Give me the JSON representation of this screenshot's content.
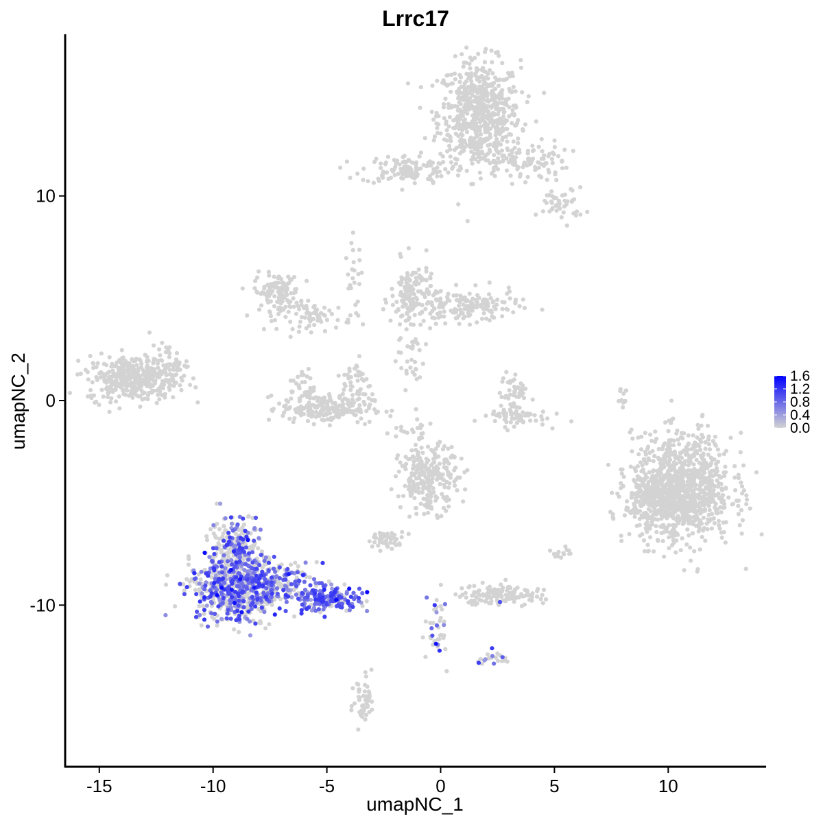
{
  "chart_data": {
    "type": "scatter",
    "title": "Lrrc17",
    "xlabel": "umapNC_1",
    "ylabel": "umapNC_2",
    "xlim": [
      -16.5,
      14.3
    ],
    "ylim": [
      -17.9,
      17.9
    ],
    "x_ticks": [
      -15,
      -10,
      -5,
      0,
      5,
      10
    ],
    "x_tick_labels": [
      "-15",
      "-10",
      "-5",
      "0",
      "5",
      "10"
    ],
    "y_ticks": [
      -10,
      0,
      10
    ],
    "y_tick_labels": [
      "-10",
      "0",
      "10"
    ],
    "grid": false,
    "legend": {
      "placement": "right",
      "range": [
        0,
        1.6
      ],
      "tick_values": [
        0,
        0.4,
        0.8,
        1.2,
        1.6
      ],
      "tick_labels": [
        "0.0",
        "0.4",
        "0.8",
        "1.2",
        "1.6"
      ],
      "low_color": "#d3d3d3",
      "high_color": "#0000ff"
    },
    "colors": {
      "background_points": "#d3d3d3",
      "expressed_low": "#c6b8ef",
      "expressed_high": "#0000ff"
    },
    "clusters": [
      {
        "cx": 1.7,
        "cy": 14.0,
        "sx": 0.9,
        "sy": 1.3,
        "n": 650,
        "expr": 0
      },
      {
        "cx": -1.5,
        "cy": 11.3,
        "sx": 1.0,
        "sy": 0.35,
        "n": 120,
        "expr": 0
      },
      {
        "cx": 3.6,
        "cy": 11.7,
        "sx": 1.0,
        "sy": 0.5,
        "n": 110,
        "expr": 0
      },
      {
        "cx": 5.3,
        "cy": 9.6,
        "sx": 0.5,
        "sy": 0.4,
        "n": 45,
        "expr": 0
      },
      {
        "cx": -7.2,
        "cy": 5.3,
        "sx": 0.5,
        "sy": 0.45,
        "n": 110,
        "expr": 0
      },
      {
        "cx": -5.5,
        "cy": 4.1,
        "sx": 0.8,
        "sy": 0.35,
        "n": 70,
        "expr": 0
      },
      {
        "cx": -3.8,
        "cy": 5.8,
        "sx": 0.2,
        "sy": 1.0,
        "n": 25,
        "expr": 0
      },
      {
        "cx": -1.2,
        "cy": 5.0,
        "sx": 0.5,
        "sy": 0.9,
        "n": 150,
        "expr": 0
      },
      {
        "cx": 1.2,
        "cy": 4.6,
        "sx": 1.1,
        "sy": 0.4,
        "n": 150,
        "expr": 0
      },
      {
        "cx": -5.0,
        "cy": -0.4,
        "sx": 1.0,
        "sy": 0.35,
        "n": 200,
        "expr": 0
      },
      {
        "cx": -6.1,
        "cy": 0.6,
        "sx": 0.3,
        "sy": 0.5,
        "n": 40,
        "expr": 0
      },
      {
        "cx": -3.7,
        "cy": 0.9,
        "sx": 0.3,
        "sy": 0.6,
        "n": 40,
        "expr": 0
      },
      {
        "cx": -13.5,
        "cy": 1.1,
        "sx": 1.0,
        "sy": 0.55,
        "n": 380,
        "expr": 0
      },
      {
        "cx": -12.0,
        "cy": 1.9,
        "sx": 0.4,
        "sy": 0.4,
        "n": 40,
        "expr": 0
      },
      {
        "cx": 3.2,
        "cy": 0.3,
        "sx": 0.3,
        "sy": 0.6,
        "n": 50,
        "expr": 0
      },
      {
        "cx": 3.1,
        "cy": -0.8,
        "sx": 0.8,
        "sy": 0.22,
        "n": 60,
        "expr": 0
      },
      {
        "cx": -1.3,
        "cy": 2.0,
        "sx": 0.3,
        "sy": 0.7,
        "n": 25,
        "expr": 0
      },
      {
        "cx": -1.3,
        "cy": -1.5,
        "sx": 0.6,
        "sy": 0.3,
        "n": 20,
        "expr": 0
      },
      {
        "cx": 7.9,
        "cy": 0.3,
        "sx": 0.15,
        "sy": 0.35,
        "n": 12,
        "expr": 0
      },
      {
        "cx": 10.6,
        "cy": -4.3,
        "sx": 1.1,
        "sy": 1.3,
        "n": 1000,
        "expr": 0
      },
      {
        "cx": 9.5,
        "cy": -5.0,
        "sx": 0.7,
        "sy": 0.6,
        "n": 180,
        "expr": 0
      },
      {
        "cx": -0.5,
        "cy": -3.8,
        "sx": 0.65,
        "sy": 0.8,
        "n": 250,
        "expr": 0
      },
      {
        "cx": -2.4,
        "cy": -6.8,
        "sx": 0.4,
        "sy": 0.2,
        "n": 45,
        "expr": 0
      },
      {
        "cx": 2.6,
        "cy": -9.5,
        "sx": 0.9,
        "sy": 0.25,
        "n": 130,
        "expr": 0.02
      },
      {
        "cx": -0.2,
        "cy": -10.9,
        "sx": 0.25,
        "sy": 0.8,
        "n": 40,
        "expr": 0.25
      },
      {
        "cx": 2.3,
        "cy": -12.6,
        "sx": 0.3,
        "sy": 0.2,
        "n": 22,
        "expr": 0.2
      },
      {
        "cx": -3.4,
        "cy": -14.7,
        "sx": 0.25,
        "sy": 0.7,
        "n": 45,
        "expr": 0
      },
      {
        "cx": 5.3,
        "cy": -7.5,
        "sx": 0.3,
        "sy": 0.15,
        "n": 14,
        "expr": 0
      },
      {
        "cx": -9.0,
        "cy": -7.3,
        "sx": 0.55,
        "sy": 0.9,
        "n": 260,
        "expr": 0.35
      },
      {
        "cx": -9.0,
        "cy": -9.2,
        "sx": 1.0,
        "sy": 0.75,
        "n": 620,
        "expr": 0.5
      },
      {
        "cx": -7.0,
        "cy": -8.8,
        "sx": 0.8,
        "sy": 0.45,
        "n": 140,
        "expr": 0.45
      },
      {
        "cx": -5.0,
        "cy": -9.7,
        "sx": 0.75,
        "sy": 0.3,
        "n": 180,
        "expr": 0.8
      }
    ]
  }
}
